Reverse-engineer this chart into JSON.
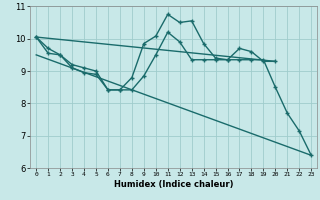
{
  "xlabel": "Humidex (Indice chaleur)",
  "xlim": [
    -0.5,
    23.5
  ],
  "ylim": [
    6,
    11
  ],
  "x_ticks": [
    0,
    1,
    2,
    3,
    4,
    5,
    6,
    7,
    8,
    9,
    10,
    11,
    12,
    13,
    14,
    15,
    16,
    17,
    18,
    19,
    20,
    21,
    22,
    23
  ],
  "y_ticks": [
    6,
    7,
    8,
    9,
    10,
    11
  ],
  "bg_color": "#c8e8e8",
  "grid_color": "#a0cccc",
  "line_color": "#1a6b6b",
  "lines": [
    {
      "x": [
        0,
        1,
        2,
        3,
        4,
        5,
        6,
        7,
        8,
        9,
        10,
        11,
        12,
        13,
        14,
        15,
        16,
        17,
        18,
        19,
        20
      ],
      "y": [
        10.05,
        9.7,
        9.5,
        9.2,
        9.1,
        9.0,
        8.42,
        8.42,
        8.8,
        9.85,
        10.08,
        10.75,
        10.5,
        10.55,
        9.85,
        9.4,
        9.35,
        9.7,
        9.6,
        9.3,
        9.3
      ],
      "marker": true,
      "ms": 2.5,
      "lw": 1.0
    },
    {
      "x": [
        0,
        1,
        2,
        3,
        4,
        5,
        6,
        7,
        8,
        9,
        10,
        11,
        12,
        13,
        14,
        15,
        16,
        17,
        18,
        19,
        20,
        21,
        22,
        23
      ],
      "y": [
        10.05,
        9.55,
        9.5,
        9.1,
        8.95,
        8.9,
        8.42,
        8.42,
        8.42,
        8.85,
        9.5,
        10.2,
        9.9,
        9.35,
        9.35,
        9.35,
        9.35,
        9.35,
        9.35,
        9.35,
        8.5,
        7.7,
        7.15,
        6.4
      ],
      "marker": true,
      "ms": 2.5,
      "lw": 1.0
    },
    {
      "x": [
        0,
        20
      ],
      "y": [
        10.05,
        9.3
      ],
      "marker": false,
      "ms": 0,
      "lw": 1.0
    },
    {
      "x": [
        0,
        23
      ],
      "y": [
        9.5,
        6.4
      ],
      "marker": false,
      "ms": 0,
      "lw": 1.0
    }
  ]
}
